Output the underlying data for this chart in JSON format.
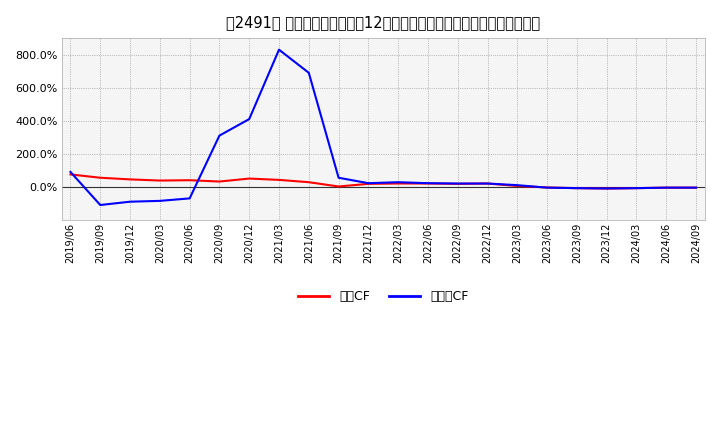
{
  "title": "［2491］ キャッシュフローの12か月移動合計の対前年同期増減率の推移",
  "x_labels": [
    "2019/06",
    "2019/09",
    "2019/12",
    "2020/03",
    "2020/06",
    "2020/09",
    "2020/12",
    "2021/03",
    "2021/06",
    "2021/09",
    "2021/12",
    "2022/03",
    "2022/06",
    "2022/09",
    "2022/12",
    "2023/03",
    "2023/06",
    "2023/09",
    "2023/12",
    "2024/03",
    "2024/06",
    "2024/09"
  ],
  "operating_cf": [
    75,
    55,
    45,
    38,
    40,
    32,
    50,
    42,
    28,
    2,
    18,
    20,
    20,
    18,
    20,
    5,
    -4,
    -8,
    -10,
    -8,
    -5,
    -5
  ],
  "free_cf": [
    90,
    -110,
    -90,
    -85,
    -70,
    310,
    410,
    830,
    690,
    55,
    22,
    28,
    22,
    20,
    20,
    10,
    -5,
    -8,
    -10,
    -8,
    -5,
    -5
  ],
  "operating_color": "#ff0000",
  "free_color": "#0000ff",
  "background_color": "#ffffff",
  "plot_bg_color": "#f5f5f5",
  "grid_color": "#888888",
  "ylim_min": -200,
  "ylim_max": 900,
  "yticks": [
    0,
    200,
    400,
    600,
    800
  ],
  "legend_labels": [
    "営業CF",
    "フリーCF"
  ],
  "legend_colors": [
    "#ff0000",
    "#0000ff"
  ]
}
